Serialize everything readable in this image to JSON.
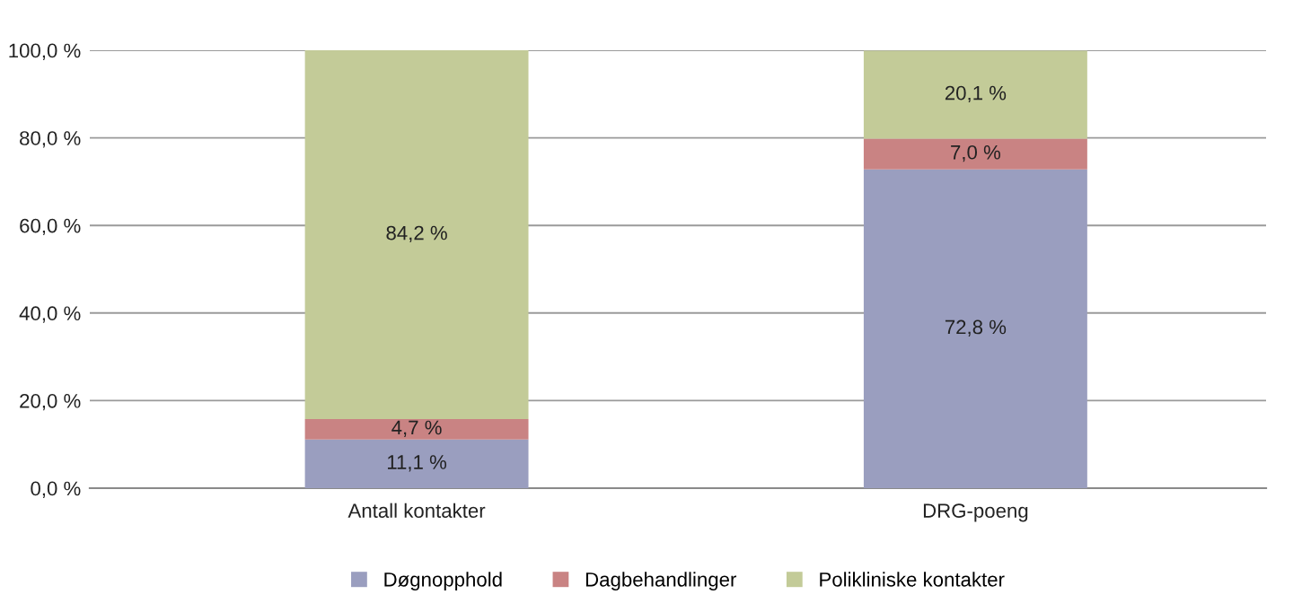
{
  "chart_data": {
    "type": "bar",
    "stacked": true,
    "categories": [
      "Antall kontakter",
      "DRG-poeng"
    ],
    "series": [
      {
        "name": "Døgnopphold",
        "color": "#9a9ebf",
        "values": [
          11.1,
          72.8
        ],
        "value_labels": [
          "11,1 %",
          "72,8 %"
        ]
      },
      {
        "name": "Dagbehandlinger",
        "color": "#c98383",
        "values": [
          4.7,
          7.0
        ],
        "value_labels": [
          "4,7 %",
          "7,0 %"
        ]
      },
      {
        "name": "Polikliniske kontakter",
        "color": "#c3cb98",
        "values": [
          84.2,
          20.1
        ],
        "value_labels": [
          "84,2 %",
          "20,1 %"
        ]
      }
    ],
    "ylim": [
      0,
      100
    ],
    "yticks": [
      {
        "value": 0,
        "label": "0,0 %"
      },
      {
        "value": 20,
        "label": "20,0 %"
      },
      {
        "value": 40,
        "label": "40,0 %"
      },
      {
        "value": 60,
        "label": "60,0 %"
      },
      {
        "value": 80,
        "label": "80,0 %"
      },
      {
        "value": 100,
        "label": "100,0 %"
      }
    ],
    "grid": "y",
    "legend": "bottom"
  }
}
